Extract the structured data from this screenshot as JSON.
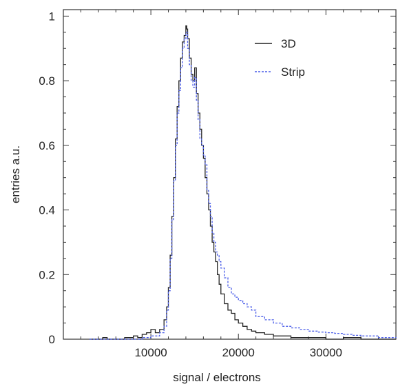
{
  "chart_data": {
    "type": "line",
    "xlabel": "signal / electrons",
    "ylabel": "entries a.u.",
    "xlim": [
      0,
      38000
    ],
    "ylim": [
      0,
      1.02
    ],
    "x_ticks": [
      10000,
      20000,
      30000
    ],
    "y_ticks": [
      0,
      0.2,
      0.4,
      0.6,
      0.8,
      1
    ],
    "x_tick_labels": [
      "10000",
      "20000",
      "30000"
    ],
    "y_tick_labels": [
      "0",
      "0.2",
      "0.4",
      "0.6",
      "0.8",
      "1"
    ],
    "legend_position": "top-right",
    "style": "histogram step",
    "series": [
      {
        "name": "3D",
        "color": "#222222",
        "dash": "solid",
        "x": [
          3000,
          4500,
          5000,
          6000,
          7000,
          8000,
          8500,
          9000,
          9500,
          10000,
          10500,
          11000,
          11500,
          11800,
          12000,
          12200,
          12400,
          12600,
          12800,
          13000,
          13200,
          13400,
          13600,
          13800,
          14000,
          14100,
          14200,
          14400,
          14600,
          14800,
          15000,
          15200,
          15400,
          15600,
          15800,
          16000,
          16200,
          16400,
          16600,
          16800,
          17000,
          17200,
          17400,
          17600,
          17800,
          18000,
          18400,
          18800,
          19200,
          19600,
          20000,
          20500,
          21000,
          21500,
          22000,
          23000,
          24000,
          25000,
          26000,
          28000,
          30000,
          32000,
          34000,
          36000,
          38000
        ],
        "y": [
          0.0,
          0.005,
          0.0,
          0.0,
          0.005,
          0.01,
          0.005,
          0.015,
          0.02,
          0.03,
          0.02,
          0.03,
          0.06,
          0.1,
          0.16,
          0.26,
          0.38,
          0.5,
          0.62,
          0.72,
          0.8,
          0.87,
          0.92,
          0.94,
          0.97,
          0.96,
          0.93,
          0.87,
          0.82,
          0.8,
          0.84,
          0.76,
          0.7,
          0.65,
          0.6,
          0.56,
          0.5,
          0.45,
          0.4,
          0.35,
          0.3,
          0.27,
          0.24,
          0.2,
          0.17,
          0.14,
          0.11,
          0.09,
          0.08,
          0.06,
          0.05,
          0.04,
          0.03,
          0.025,
          0.02,
          0.015,
          0.01,
          0.01,
          0.005,
          0.005,
          0.0,
          0.005,
          0.0,
          0.0,
          0.0
        ]
      },
      {
        "name": "Strip",
        "color": "#4a5de8",
        "dash": "dashed",
        "x": [
          3000,
          5000,
          7000,
          8000,
          9000,
          10000,
          10500,
          11000,
          11500,
          11800,
          12000,
          12200,
          12400,
          12600,
          12800,
          13000,
          13200,
          13400,
          13600,
          13800,
          14000,
          14200,
          14400,
          14600,
          14800,
          15000,
          15200,
          15400,
          15600,
          15800,
          16000,
          16200,
          16400,
          16600,
          16800,
          17000,
          17200,
          17400,
          17600,
          17800,
          18000,
          18400,
          18800,
          19200,
          19600,
          20000,
          20500,
          21000,
          21500,
          22000,
          22500,
          23000,
          23500,
          24000,
          25000,
          26000,
          27000,
          28000,
          29000,
          30000,
          31000,
          32000,
          33000,
          34000,
          36000,
          38000
        ],
        "y": [
          0.0,
          0.0,
          0.0,
          0.0,
          0.005,
          0.01,
          0.01,
          0.02,
          0.04,
          0.09,
          0.15,
          0.25,
          0.37,
          0.49,
          0.6,
          0.7,
          0.77,
          0.84,
          0.9,
          0.93,
          0.95,
          0.9,
          0.85,
          0.8,
          0.78,
          0.81,
          0.74,
          0.68,
          0.62,
          0.6,
          0.57,
          0.54,
          0.46,
          0.42,
          0.38,
          0.33,
          0.3,
          0.27,
          0.26,
          0.24,
          0.22,
          0.19,
          0.16,
          0.14,
          0.13,
          0.12,
          0.11,
          0.1,
          0.09,
          0.07,
          0.07,
          0.06,
          0.06,
          0.05,
          0.04,
          0.035,
          0.03,
          0.025,
          0.022,
          0.02,
          0.018,
          0.015,
          0.012,
          0.01,
          0.005,
          0.004
        ]
      }
    ]
  }
}
